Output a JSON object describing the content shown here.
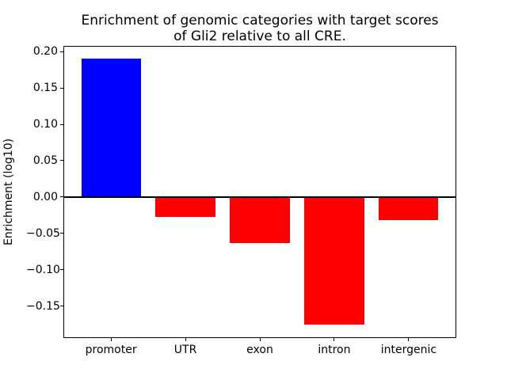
{
  "chart_data": {
    "type": "bar",
    "title": "Enrichment of genomic categories with target scores\nof Gli2 relative to all CRE.",
    "xlabel": "",
    "ylabel": "Enrichment (log10)",
    "categories": [
      "promoter",
      "UTR",
      "exon",
      "intron",
      "intergenic"
    ],
    "values": [
      0.19,
      -0.027,
      -0.063,
      -0.176,
      -0.032
    ],
    "bar_colors": [
      "#0000ff",
      "#ff0000",
      "#ff0000",
      "#ff0000",
      "#ff0000"
    ],
    "positive_color": "#0000ff",
    "negative_color": "#ff0000",
    "ylim": [
      -0.1943,
      0.2083
    ],
    "yticks": [
      0.2,
      0.15,
      0.1,
      0.05,
      0.0,
      -0.05,
      -0.1,
      -0.15
    ],
    "ytick_labels": [
      "0.20",
      "0.15",
      "0.10",
      "0.05",
      "0.00",
      "−0.05",
      "−0.10",
      "−0.15"
    ],
    "grid": false,
    "legend": null,
    "zero_line": true,
    "bar_width_fraction": 0.8
  }
}
